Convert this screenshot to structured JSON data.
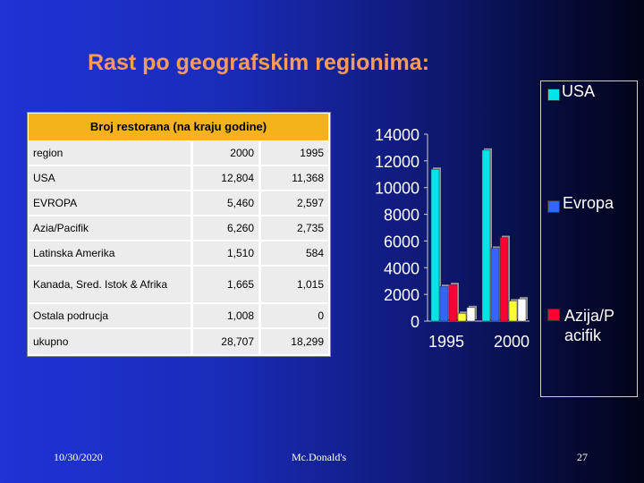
{
  "slide": {
    "title": "Rast po geografskim regionima:",
    "footer_date": "10/30/2020",
    "footer_center": "Mc.Donald's",
    "footer_page": "27"
  },
  "table": {
    "header": "Broj restorana (na kraju godine)",
    "columns": [
      "region",
      "2000",
      "1995"
    ],
    "rows": [
      [
        "USA",
        "12,804",
        "11,368"
      ],
      [
        "EVROPA",
        "5,460",
        "2,597"
      ],
      [
        "Azia/Pacifik",
        "6,260",
        "2,735"
      ],
      [
        "Latinska  Amerika",
        "1,510",
        "584"
      ],
      [
        "Kanada, Sred. Istok & Afrika",
        "1,665",
        "1,015"
      ],
      [
        "Ostala podrucja",
        "1,008",
        "0"
      ],
      [
        "ukupno",
        "28,707",
        "18,299"
      ]
    ]
  },
  "chart_data": {
    "type": "bar",
    "categories": [
      "1995",
      "2000"
    ],
    "ylim": [
      0,
      14000
    ],
    "yticks": [
      "14000",
      "12000",
      "10000",
      "8000",
      "6000",
      "4000",
      "2000",
      "0"
    ],
    "series": [
      {
        "name": "USA",
        "color": "#00e5e5",
        "values": [
          11368,
          12804
        ]
      },
      {
        "name": "Evropa",
        "color": "#3366ff",
        "values": [
          2597,
          5460
        ]
      },
      {
        "name": "Azija/Pacifik",
        "color": "#ff0033",
        "values": [
          2735,
          6260
        ]
      },
      {
        "name": "",
        "color": "#ffff33",
        "values": [
          584,
          1510
        ]
      },
      {
        "name": "",
        "color": "#ffffff",
        "values": [
          1015,
          1665
        ]
      }
    ],
    "legend_lines": [
      [
        "USA"
      ],
      [
        "Evropa"
      ],
      [
        "Azija/P",
        "acifik"
      ]
    ]
  }
}
